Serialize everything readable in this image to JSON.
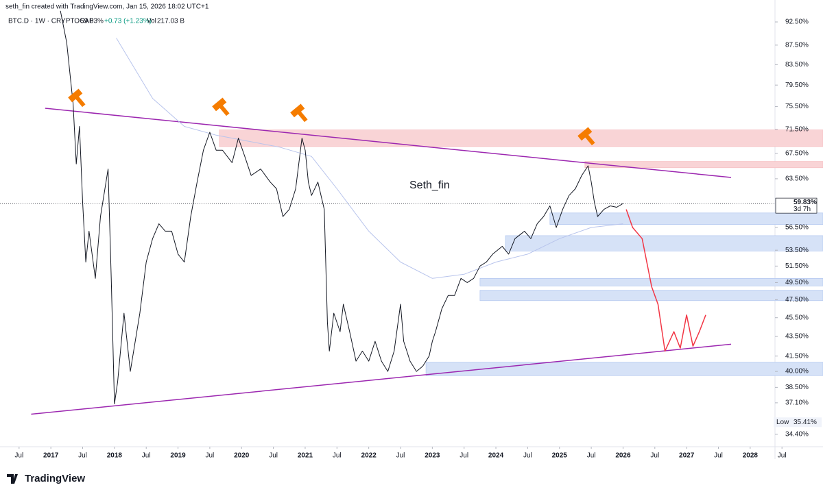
{
  "header": "seth_fin created with TradingView.com, Jan 15, 2026 18:02 UTC+1",
  "footer": "TradingView",
  "chart_data": {
    "type": "line",
    "legend_line": {
      "symbol": "BTC.D · 1W · CRYPTOCAP",
      "price": "59.83%",
      "change": "+0.73 (+1.23%)",
      "vol_label": "Vol",
      "vol": "217.03 B"
    },
    "log_scale": true,
    "grid": false,
    "xlim": [
      2016.2,
      2028.39
    ],
    "xticks": [
      {
        "value": 2016.5,
        "label": "Jul"
      },
      2017,
      {
        "value": 2017.5,
        "label": "Jul"
      },
      2018,
      {
        "value": 2018.5,
        "label": "Jul"
      },
      2019,
      {
        "value": 2019.5,
        "label": "Jul"
      },
      2020,
      {
        "value": 2020.5,
        "label": "Jul"
      },
      2021,
      {
        "value": 2021.5,
        "label": "Jul"
      },
      2022,
      {
        "value": 2022.5,
        "label": "Jul"
      },
      2023,
      {
        "value": 2023.5,
        "label": "Jul"
      },
      2024,
      {
        "value": 2024.5,
        "label": "Jul"
      },
      2025,
      {
        "value": 2025.5,
        "label": "Jul"
      },
      2026,
      {
        "value": 2026.5,
        "label": "Jul"
      },
      2027,
      {
        "value": 2027.5,
        "label": "Jul"
      },
      2028,
      {
        "value": 2028.5,
        "label": "Jul"
      }
    ],
    "ylim": [
      33.5,
      97.5
    ],
    "yticks": [
      {
        "value": 92.5,
        "label": "92.50%"
      },
      {
        "value": 87.5,
        "label": "87.50%"
      },
      {
        "value": 83.5,
        "label": "83.50%"
      },
      {
        "value": 79.5,
        "label": "79.50%"
      },
      {
        "value": 75.5,
        "label": "75.50%"
      },
      {
        "value": 71.5,
        "label": "71.50%"
      },
      {
        "value": 67.5,
        "label": "67.50%"
      },
      {
        "value": 63.5,
        "label": "63.50%"
      },
      {
        "value": 56.5,
        "label": "56.50%"
      },
      {
        "value": 53.5,
        "label": "53.50%"
      },
      {
        "value": 51.5,
        "label": "51.50%"
      },
      {
        "value": 49.5,
        "label": "49.50%"
      },
      {
        "value": 47.5,
        "label": "47.50%"
      },
      {
        "value": 45.5,
        "label": "45.50%"
      },
      {
        "value": 43.5,
        "label": "43.50%"
      },
      {
        "value": 41.5,
        "label": "41.50%"
      },
      {
        "value": 40,
        "label": "40.00%"
      },
      {
        "value": 38.5,
        "label": "38.50%"
      },
      {
        "value": 37.1,
        "label": "37.10%"
      },
      {
        "value": 34.4,
        "label": "34.40%"
      }
    ],
    "zones": [
      {
        "x0": 2019.65,
        "y0": 68.6,
        "y1": 71.4,
        "color": "#f9d4d6"
      },
      {
        "x0": 2025.4,
        "y0": 65.2,
        "y1": 66.2,
        "color": "#f9d4d6"
      },
      {
        "x0": 2024.85,
        "y0": 56.9,
        "y1": 58.5,
        "color": "#d6e2f7"
      },
      {
        "x0": 2024.15,
        "y0": 53.4,
        "y1": 55.4,
        "color": "#d6e2f7"
      },
      {
        "x0": 2023.75,
        "y0": 49.1,
        "y1": 50.0,
        "color": "#d6e2f7"
      },
      {
        "x0": 2023.75,
        "y0": 47.4,
        "y1": 48.6,
        "color": "#d6e2f7"
      },
      {
        "x0": 2022.9,
        "y0": 39.6,
        "y1": 40.9,
        "color": "#d6e2f7"
      }
    ],
    "trendlines": [
      {
        "x": [
          2016.91,
          2027.7
        ],
        "values": [
          75.2,
          63.7
        ],
        "color": "#9c27b0"
      },
      {
        "x": [
          2016.69,
          2027.7
        ],
        "values": [
          36.1,
          42.7
        ],
        "color": "#9c27b0"
      }
    ],
    "series": [
      {
        "color": "#b8c4ec",
        "width": 1,
        "x": [
          2018.03,
          2018.6,
          2019.1,
          2019.6,
          2020.1,
          2020.6,
          2021.1,
          2021.5,
          2022.0,
          2022.5,
          2023.0,
          2023.5,
          2024.0,
          2024.5,
          2025.0,
          2025.5,
          2026.0
        ],
        "values": [
          89,
          77,
          72,
          70.5,
          69.5,
          68.5,
          67,
          62,
          56,
          52,
          50,
          50.5,
          52,
          53,
          55,
          56.5,
          57
        ]
      },
      {
        "color": "#131722",
        "width": 1,
        "x": [
          2017.15,
          2017.25,
          2017.35,
          2017.4,
          2017.45,
          2017.5,
          2017.55,
          2017.6,
          2017.7,
          2017.78,
          2017.9,
          2017.95,
          2018.0,
          2018.05,
          2018.15,
          2018.25,
          2018.4,
          2018.5,
          2018.6,
          2018.7,
          2018.8,
          2018.9,
          2019.0,
          2019.1,
          2019.2,
          2019.3,
          2019.4,
          2019.5,
          2019.6,
          2019.7,
          2019.85,
          2019.95,
          2020.05,
          2020.15,
          2020.3,
          2020.45,
          2020.55,
          2020.65,
          2020.75,
          2020.85,
          2020.95,
          2021.0,
          2021.05,
          2021.1,
          2021.2,
          2021.3,
          2021.35,
          2021.38,
          2021.45,
          2021.55,
          2021.6,
          2021.7,
          2021.8,
          2021.9,
          2022.0,
          2022.1,
          2022.2,
          2022.3,
          2022.4,
          2022.5,
          2022.55,
          2022.65,
          2022.75,
          2022.85,
          2022.95,
          2023.0,
          2023.05,
          2023.15,
          2023.25,
          2023.35,
          2023.45,
          2023.55,
          2023.65,
          2023.75,
          2023.85,
          2023.95,
          2024.1,
          2024.2,
          2024.3,
          2024.45,
          2024.55,
          2024.65,
          2024.75,
          2024.85,
          2024.95,
          2025.05,
          2025.15,
          2025.25,
          2025.35,
          2025.45,
          2025.5,
          2025.55,
          2025.6,
          2025.7,
          2025.8,
          2025.9,
          2026.0
        ],
        "values": [
          95,
          88,
          76,
          65.8,
          72,
          60,
          52,
          56,
          50,
          58,
          65,
          50,
          37,
          39,
          46,
          40,
          46,
          52,
          55,
          57,
          56,
          56,
          53,
          52,
          58,
          63,
          68,
          71,
          68,
          68,
          66,
          70,
          67,
          64,
          65,
          63,
          62,
          58,
          59,
          62,
          70,
          68,
          63,
          61,
          63,
          59,
          45,
          42,
          46,
          44,
          47,
          44,
          41,
          42,
          41,
          43,
          41,
          40,
          42,
          47,
          43,
          41,
          40,
          40.5,
          41.5,
          43,
          44,
          46.5,
          48,
          48,
          50,
          49.5,
          50,
          51.5,
          52,
          53,
          54,
          53,
          55,
          56,
          55,
          57,
          58,
          59.5,
          56.5,
          59,
          61,
          62,
          64,
          65.5,
          63,
          60,
          58,
          59,
          59.5,
          59.3,
          59.83
        ]
      },
      {
        "color": "#f23645",
        "width": 1.5,
        "x": [
          2026.05,
          2026.15,
          2026.3,
          2026.45,
          2026.55,
          2026.66,
          2026.8,
          2026.9,
          2027.0,
          2027.1,
          2027.2,
          2027.3
        ],
        "values": [
          59,
          56.5,
          55,
          49,
          47,
          42,
          44,
          42.3,
          45.8,
          42.5,
          44,
          45.8
        ]
      }
    ],
    "annotation": "Seth_fin",
    "last_price": {
      "value": 59.83,
      "label": "59.83%",
      "countdown": "3d 7h"
    },
    "low": {
      "label": "Low",
      "value": 35.41,
      "value_label": "35.41%"
    }
  }
}
